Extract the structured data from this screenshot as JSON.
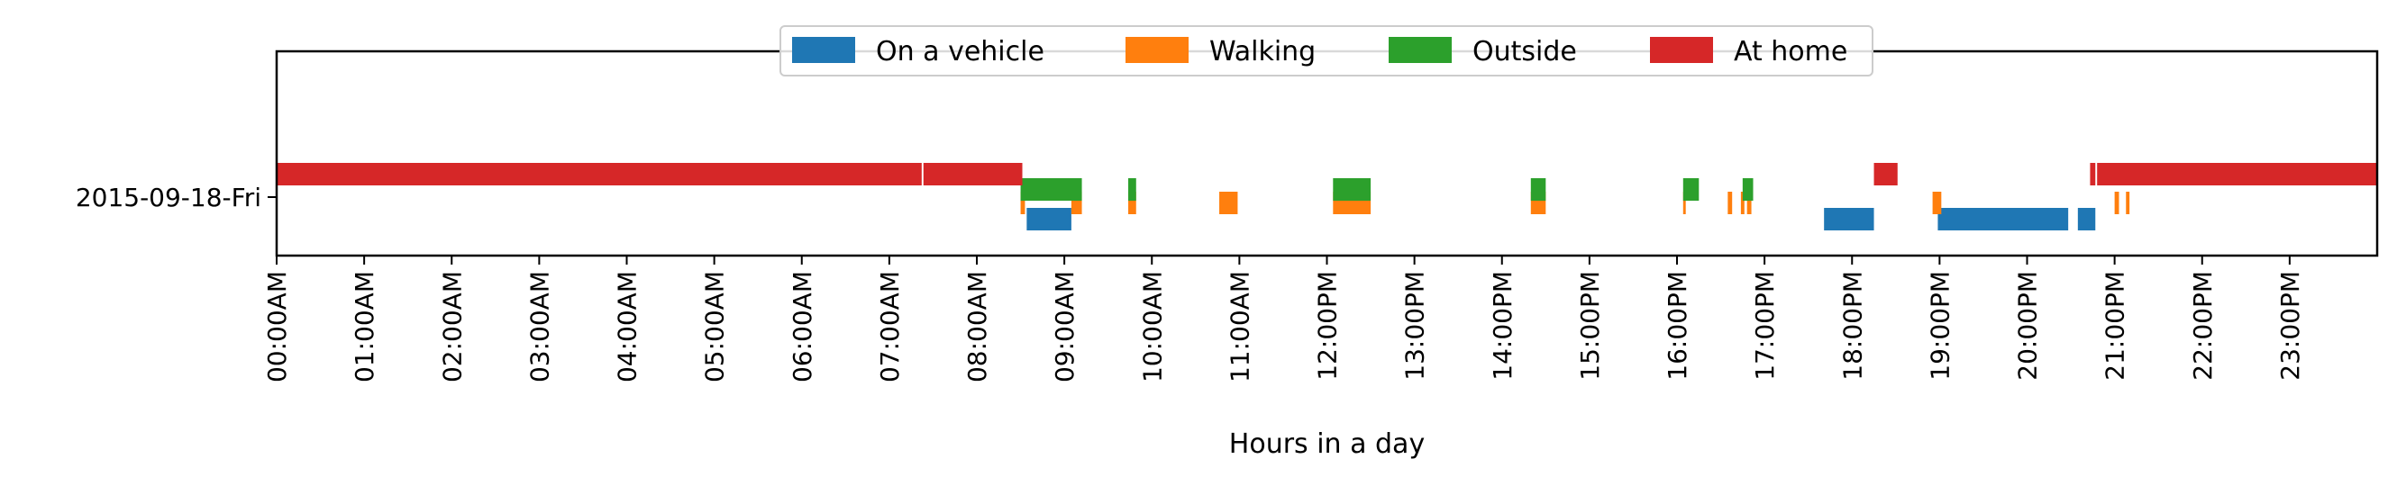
{
  "chart_data": {
    "type": "bar",
    "subtype": "timeline",
    "title": "",
    "xlabel": "Hours in a day",
    "ylabel": "",
    "xlim": [
      0,
      24
    ],
    "x_tick_labels": [
      "00:00AM",
      "01:00AM",
      "02:00AM",
      "03:00AM",
      "04:00AM",
      "05:00AM",
      "06:00AM",
      "07:00AM",
      "08:00AM",
      "09:00AM",
      "10:00AM",
      "11:00AM",
      "12:00PM",
      "13:00PM",
      "14:00PM",
      "15:00PM",
      "16:00PM",
      "17:00PM",
      "18:00PM",
      "19:00PM",
      "20:00PM",
      "21:00PM",
      "22:00PM",
      "23:00PM"
    ],
    "categories": [
      "2015-09-18-Fri"
    ],
    "grid": false,
    "legend_position": "top-center",
    "series": [
      {
        "name": "On a vehicle",
        "color": "#1f77b4",
        "lane": 0,
        "intervals": [
          [
            8.57,
            9.08
          ],
          [
            17.68,
            18.25
          ],
          [
            18.98,
            20.47
          ],
          [
            20.58,
            20.78
          ]
        ]
      },
      {
        "name": "Walking",
        "color": "#ff7f0e",
        "lane": 1,
        "intervals": [
          [
            8.5,
            8.55
          ],
          [
            9.08,
            9.2
          ],
          [
            9.73,
            9.82
          ],
          [
            10.77,
            10.98
          ],
          [
            12.07,
            12.5
          ],
          [
            14.33,
            14.5
          ],
          [
            16.07,
            16.1
          ],
          [
            16.58,
            16.63
          ],
          [
            16.73,
            16.77
          ],
          [
            16.8,
            16.85
          ],
          [
            18.92,
            19.02
          ],
          [
            21.0,
            21.05
          ],
          [
            21.13,
            21.17
          ]
        ]
      },
      {
        "name": "Outside",
        "color": "#2ca02c",
        "lane": 2,
        "intervals": [
          [
            8.5,
            9.2
          ],
          [
            9.73,
            9.82
          ],
          [
            12.07,
            12.5
          ],
          [
            14.33,
            14.5
          ],
          [
            16.07,
            16.25
          ],
          [
            16.75,
            16.87
          ]
        ]
      },
      {
        "name": "At home",
        "color": "#d62728",
        "lane": 3,
        "intervals": [
          [
            0.0,
            7.37
          ],
          [
            7.39,
            8.52
          ],
          [
            18.25,
            18.52
          ],
          [
            20.72,
            20.78
          ],
          [
            20.8,
            24.0
          ]
        ]
      }
    ]
  }
}
